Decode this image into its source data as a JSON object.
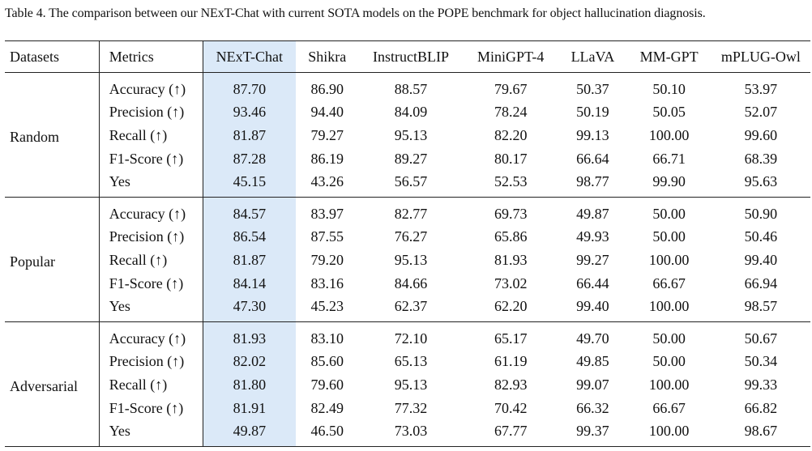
{
  "caption": "Table 4. The comparison between our NExT-Chat with current SOTA models on the POPE benchmark for object hallucination diagnosis.",
  "headers": [
    "Datasets",
    "Metrics",
    "NExT-Chat",
    "Shikra",
    "InstructBLIP",
    "MiniGPT-4",
    "LLaVA",
    "MM-GPT",
    "mPLUG-Owl"
  ],
  "groups": [
    {
      "name": "Random",
      "rows": [
        {
          "metric": "Accuracy (↑)",
          "values": [
            "87.70",
            "86.90",
            "88.57",
            "79.67",
            "50.37",
            "50.10",
            "53.97"
          ]
        },
        {
          "metric": "Precision (↑)",
          "values": [
            "93.46",
            "94.40",
            "84.09",
            "78.24",
            "50.19",
            "50.05",
            "52.07"
          ]
        },
        {
          "metric": "Recall (↑)",
          "values": [
            "81.87",
            "79.27",
            "95.13",
            "82.20",
            "99.13",
            "100.00",
            "99.60"
          ]
        },
        {
          "metric": "F1-Score (↑)",
          "values": [
            "87.28",
            "86.19",
            "89.27",
            "80.17",
            "66.64",
            "66.71",
            "68.39"
          ]
        },
        {
          "metric": "Yes",
          "values": [
            "45.15",
            "43.26",
            "56.57",
            "52.53",
            "98.77",
            "99.90",
            "95.63"
          ]
        }
      ]
    },
    {
      "name": "Popular",
      "rows": [
        {
          "metric": "Accuracy (↑)",
          "values": [
            "84.57",
            "83.97",
            "82.77",
            "69.73",
            "49.87",
            "50.00",
            "50.90"
          ]
        },
        {
          "metric": "Precision (↑)",
          "values": [
            "86.54",
            "87.55",
            "76.27",
            "65.86",
            "49.93",
            "50.00",
            "50.46"
          ]
        },
        {
          "metric": "Recall (↑)",
          "values": [
            "81.87",
            "79.20",
            "95.13",
            "81.93",
            "99.27",
            "100.00",
            "99.40"
          ]
        },
        {
          "metric": "F1-Score (↑)",
          "values": [
            "84.14",
            "83.16",
            "84.66",
            "73.02",
            "66.44",
            "66.67",
            "66.94"
          ]
        },
        {
          "metric": "Yes",
          "values": [
            "47.30",
            "45.23",
            "62.37",
            "62.20",
            "99.40",
            "100.00",
            "98.57"
          ]
        }
      ]
    },
    {
      "name": "Adversarial",
      "rows": [
        {
          "metric": "Accuracy (↑)",
          "values": [
            "81.93",
            "83.10",
            "72.10",
            "65.17",
            "49.70",
            "50.00",
            "50.67"
          ]
        },
        {
          "metric": "Precision (↑)",
          "values": [
            "82.02",
            "85.60",
            "65.13",
            "61.19",
            "49.85",
            "50.00",
            "50.34"
          ]
        },
        {
          "metric": "Recall (↑)",
          "values": [
            "81.80",
            "79.60",
            "95.13",
            "82.93",
            "99.07",
            "100.00",
            "99.33"
          ]
        },
        {
          "metric": "F1-Score (↑)",
          "values": [
            "81.91",
            "82.49",
            "77.32",
            "70.42",
            "66.32",
            "66.67",
            "66.82"
          ]
        },
        {
          "metric": "Yes",
          "values": [
            "49.87",
            "46.50",
            "73.03",
            "67.77",
            "99.37",
            "100.00",
            "98.67"
          ]
        }
      ]
    }
  ],
  "highlight_color": "#dbe9f8"
}
